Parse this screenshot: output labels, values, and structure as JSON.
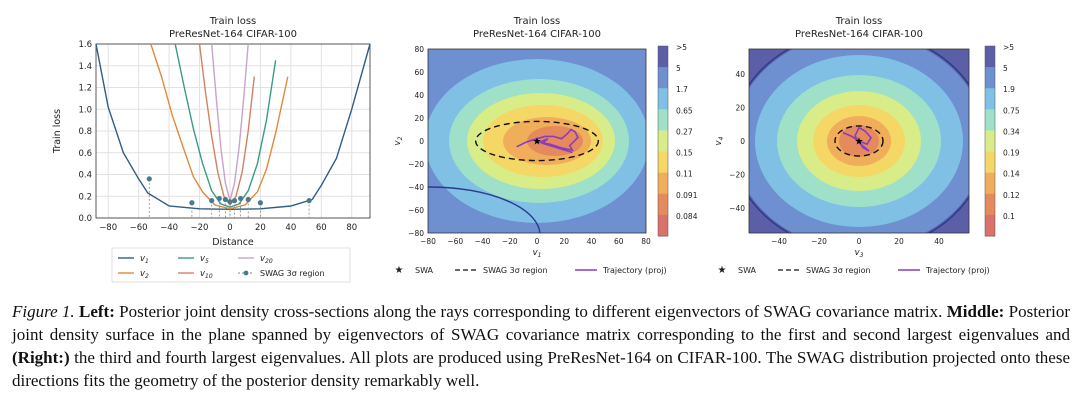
{
  "chart_data": [
    {
      "type": "line",
      "title": "Train loss",
      "subtitle": "PreResNet-164 CIFAR-100",
      "xlabel": "Distance",
      "ylabel": "Train loss",
      "xlim": [
        -88,
        92
      ],
      "ylim": [
        0,
        1.6
      ],
      "xticks": [
        "−80",
        "−60",
        "−40",
        "−20",
        "0",
        "20",
        "40",
        "60",
        "80"
      ],
      "yticks": [
        "0.0",
        "0.2",
        "0.4",
        "0.6",
        "0.8",
        "1.0",
        "1.2",
        "1.4",
        "1.6"
      ],
      "grid": true,
      "legend_position": "bottom",
      "series": [
        {
          "name": "v1",
          "label_main": "v",
          "label_sub": "1",
          "color": "#2e5d86",
          "x": [
            -88,
            -80,
            -70,
            -60,
            -54,
            -40,
            -20,
            0,
            20,
            40,
            54,
            60,
            70,
            80,
            92
          ],
          "values": [
            1.6,
            1.02,
            0.6,
            0.36,
            0.23,
            0.11,
            0.085,
            0.08,
            0.085,
            0.11,
            0.17,
            0.3,
            0.55,
            1.0,
            1.6
          ]
        },
        {
          "name": "v2",
          "label_main": "v",
          "label_sub": "2",
          "color": "#e08a3c",
          "x": [
            -52,
            -45,
            -38,
            -30,
            -24,
            -18,
            -10,
            0,
            10,
            18,
            24,
            30,
            38
          ],
          "values": [
            1.6,
            1.3,
            0.95,
            0.62,
            0.38,
            0.24,
            0.12,
            0.085,
            0.12,
            0.24,
            0.45,
            0.78,
            1.3
          ]
        },
        {
          "name": "v5",
          "label_main": "v",
          "label_sub": "5",
          "color": "#3a9a86",
          "x": [
            -36,
            -30,
            -24,
            -18,
            -12,
            -6,
            0,
            6,
            12,
            18,
            24,
            30
          ],
          "values": [
            1.6,
            1.2,
            0.82,
            0.5,
            0.25,
            0.13,
            0.1,
            0.13,
            0.25,
            0.5,
            0.9,
            1.45
          ]
        },
        {
          "name": "v10",
          "label_main": "v",
          "label_sub": "10",
          "color": "#d2825f",
          "x": [
            -20,
            -16,
            -12,
            -8,
            -4,
            0,
            4,
            8,
            12,
            16
          ],
          "values": [
            1.6,
            1.15,
            0.75,
            0.42,
            0.2,
            0.12,
            0.2,
            0.42,
            0.8,
            1.3
          ]
        },
        {
          "name": "v20",
          "label_main": "v",
          "label_sub": "20",
          "color": "#c9a3c9",
          "x": [
            -12,
            -9,
            -6,
            -3,
            0,
            3,
            6,
            9,
            12
          ],
          "values": [
            1.6,
            1.1,
            0.65,
            0.32,
            0.16,
            0.32,
            0.65,
            1.1,
            1.6
          ]
        },
        {
          "name": "SWAG 3σ region",
          "color": "#666666",
          "marker_only": true,
          "x": [
            -53,
            -25,
            -12,
            -7,
            -3,
            0,
            3,
            7,
            12,
            20,
            52
          ],
          "values": [
            0.36,
            0.14,
            0.16,
            0.18,
            0.17,
            0.15,
            0.16,
            0.18,
            0.17,
            0.14,
            0.16
          ]
        }
      ]
    },
    {
      "type": "heatmap",
      "title": "Train loss",
      "subtitle": "PreResNet-164 CIFAR-100",
      "xlabel": "v1",
      "ylabel": "v2",
      "xlim": [
        -80,
        80
      ],
      "ylim": [
        -80,
        80
      ],
      "xticks": [
        "−80",
        "−60",
        "−40",
        "−20",
        "0",
        "20",
        "40",
        "60",
        "80"
      ],
      "yticks": [
        "80",
        "60",
        "40",
        "20",
        "0",
        "−20",
        "−40",
        "−60",
        "−80"
      ],
      "colorbar": [
        ">5",
        "5",
        "1.7",
        "0.65",
        "0.27",
        "0.15",
        "0.11",
        "0.091",
        "0.084"
      ],
      "swag_region": {
        "cx": 0,
        "cy": 0,
        "rx": 45,
        "ry": 17
      },
      "trajectory_x": [
        -15,
        -8,
        0,
        6,
        12,
        18,
        22,
        25,
        28,
        30,
        24,
        26,
        18,
        10,
        2,
        8,
        4,
        26
      ],
      "trajectory_y": [
        -5,
        -1,
        2,
        4,
        4,
        2,
        6,
        10,
        8,
        3,
        -4,
        -8,
        -6,
        -3,
        -1,
        2,
        -2,
        -10
      ],
      "swa_point": {
        "x": 0,
        "y": 0
      },
      "legend": [
        "SWA",
        "SWAG 3σ region",
        "Trajectory (proj)"
      ]
    },
    {
      "type": "heatmap",
      "title": "Train loss",
      "subtitle": "PreResNet-164 CIFAR-100",
      "xlabel": "v3",
      "ylabel": "v4",
      "xlim": [
        -55,
        55
      ],
      "ylim": [
        -55,
        55
      ],
      "xticks": [
        "−40",
        "−20",
        "0",
        "20",
        "40"
      ],
      "yticks": [
        "40",
        "20",
        "0",
        "−20",
        "−40"
      ],
      "colorbar": [
        ">5",
        "5",
        "1.9",
        "0.75",
        "0.34",
        "0.19",
        "0.14",
        "0.12",
        "0.1"
      ],
      "swag_region": {
        "cx": 0,
        "cy": 0,
        "rx": 12,
        "ry": 9
      },
      "trajectory_x": [
        -8,
        -4,
        0,
        4,
        6,
        3,
        0,
        -2,
        2,
        5,
        0
      ],
      "trajectory_y": [
        5,
        3,
        0,
        -2,
        2,
        6,
        8,
        3,
        -4,
        -6,
        -1
      ],
      "swa_point": {
        "x": 0,
        "y": 0
      },
      "legend": [
        "SWA",
        "SWAG 3σ region",
        "Trajectory (proj)"
      ]
    }
  ],
  "caption": {
    "fig_label": "Figure 1.",
    "left_label": "Left:",
    "left_text": " Posterior joint density cross-sections along the rays corresponding to different eigenvectors of SWAG covariance matrix.",
    "middle_label": "Middle:",
    "middle_text": " Posterior joint density surface in the plane spanned by eigenvectors of SWAG covariance matrix corresponding to the first and second largest eigenvalues and ",
    "right_label": "(Right:)",
    "right_text": " the third and fourth largest eigenvalues. All plots are produced using PreResNet-164 on CIFAR-100. The SWAG distribution projected onto these directions fits the geometry of the posterior density remarkably well."
  }
}
